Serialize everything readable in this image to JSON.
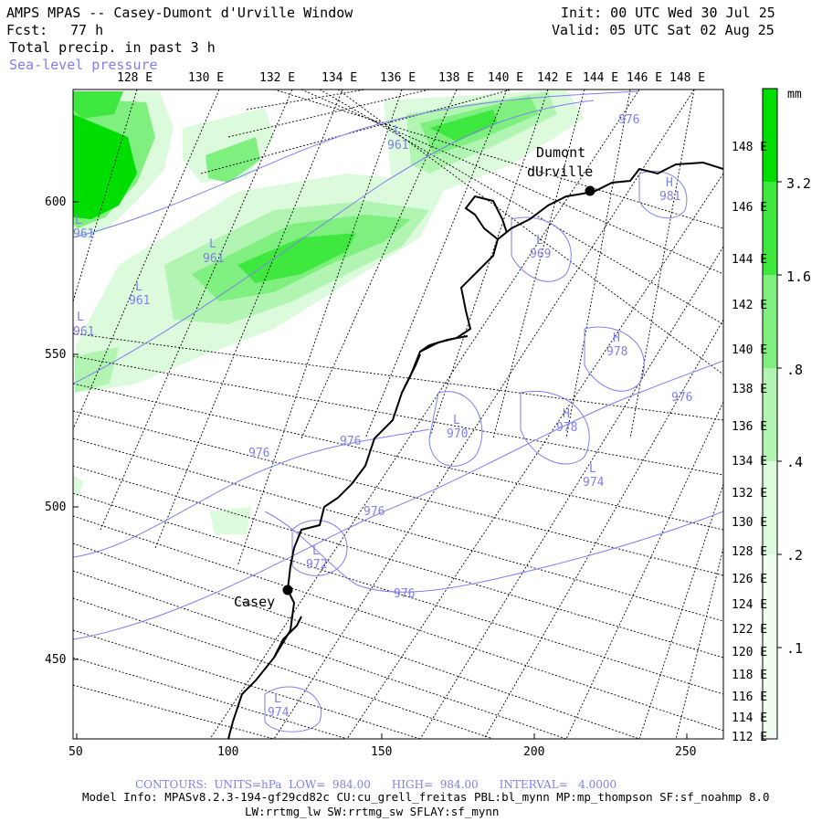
{
  "header": {
    "title": "AMPS MPAS -- Casey-Dumont d'Urville Window",
    "forecast_label": "Fcst:",
    "forecast_hours": "77 h",
    "field1": "Total precip. in past 3 h",
    "field2": "Sea-level pressure",
    "init": "Init: 00 UTC Wed 30 Jul 25",
    "valid": "Valid: 05 UTC Sat 02 Aug 25"
  },
  "map": {
    "top_lon_labels": [
      "128 E",
      "130 E",
      "132 E",
      "134 E",
      "136 E",
      "138 E",
      "140 E",
      "142 E",
      "144 E",
      "146 E",
      "148 E"
    ],
    "right_lat_labels": [
      "148 E",
      "146 E",
      "144 E",
      "142 E",
      "140 E",
      "138 E",
      "136 E",
      "134 E",
      "132 E",
      "130 E",
      "128 E",
      "126 E",
      "124 E",
      "122 E",
      "120 E",
      "118 E",
      "116 E",
      "114 E",
      "112 E"
    ],
    "left_axis_labels": [
      "600",
      "550",
      "500",
      "450"
    ],
    "bottom_axis_labels": [
      "50",
      "100",
      "150",
      "200",
      "250"
    ],
    "stations": [
      {
        "name_line1": "Dumont",
        "name_line2": "dUrville"
      },
      {
        "name_line1": "Casey",
        "name_line2": ""
      }
    ],
    "pressure_labels": [
      {
        "sym": "L",
        "val": "961"
      },
      {
        "sym": "L",
        "val": "961"
      },
      {
        "sym": "L",
        "val": "961"
      },
      {
        "sym": "L",
        "val": "961"
      },
      {
        "sym": "L",
        "val": "961"
      },
      {
        "sym": "",
        "val": "976"
      },
      {
        "sym": "H",
        "val": "981"
      },
      {
        "sym": "L",
        "val": "969"
      },
      {
        "sym": "H",
        "val": "978"
      },
      {
        "sym": "",
        "val": "976"
      },
      {
        "sym": "H",
        "val": "978"
      },
      {
        "sym": "L",
        "val": "970"
      },
      {
        "sym": "L",
        "val": "974"
      },
      {
        "sym": "",
        "val": "976"
      },
      {
        "sym": "",
        "val": "976"
      },
      {
        "sym": "",
        "val": "976"
      },
      {
        "sym": "L",
        "val": "972"
      },
      {
        "sym": "",
        "val": "976"
      },
      {
        "sym": "L",
        "val": "974"
      }
    ]
  },
  "colorbar": {
    "unit": "mm",
    "labels": [
      "3.2",
      "1.6",
      ".8",
      ".4",
      ".2",
      ".1"
    ],
    "colors": [
      "#00dd00",
      "#3fe83f",
      "#7ff07f",
      "#b2f5b2",
      "#dcfadc",
      "#f2fdf2"
    ]
  },
  "footer": {
    "contours": "CONTOURS:  UNITS=hPa  LOW=  984.00      HIGH=  984.00      INTERVAL=   4.0000",
    "model_info": "Model Info: MPASv8.2.3-194-gf29cd82c CU:cu_grell_freitas PBL:bl_mynn MP:mp_thompson SF:sf_noahmp 8.0",
    "model_info2": "LW:rrtmg_lw SW:rrtmg_sw SFLAY:sf_mynn"
  },
  "colors": {
    "contour": "#7f7fee",
    "grid": "#000000",
    "coast": "#000000"
  }
}
